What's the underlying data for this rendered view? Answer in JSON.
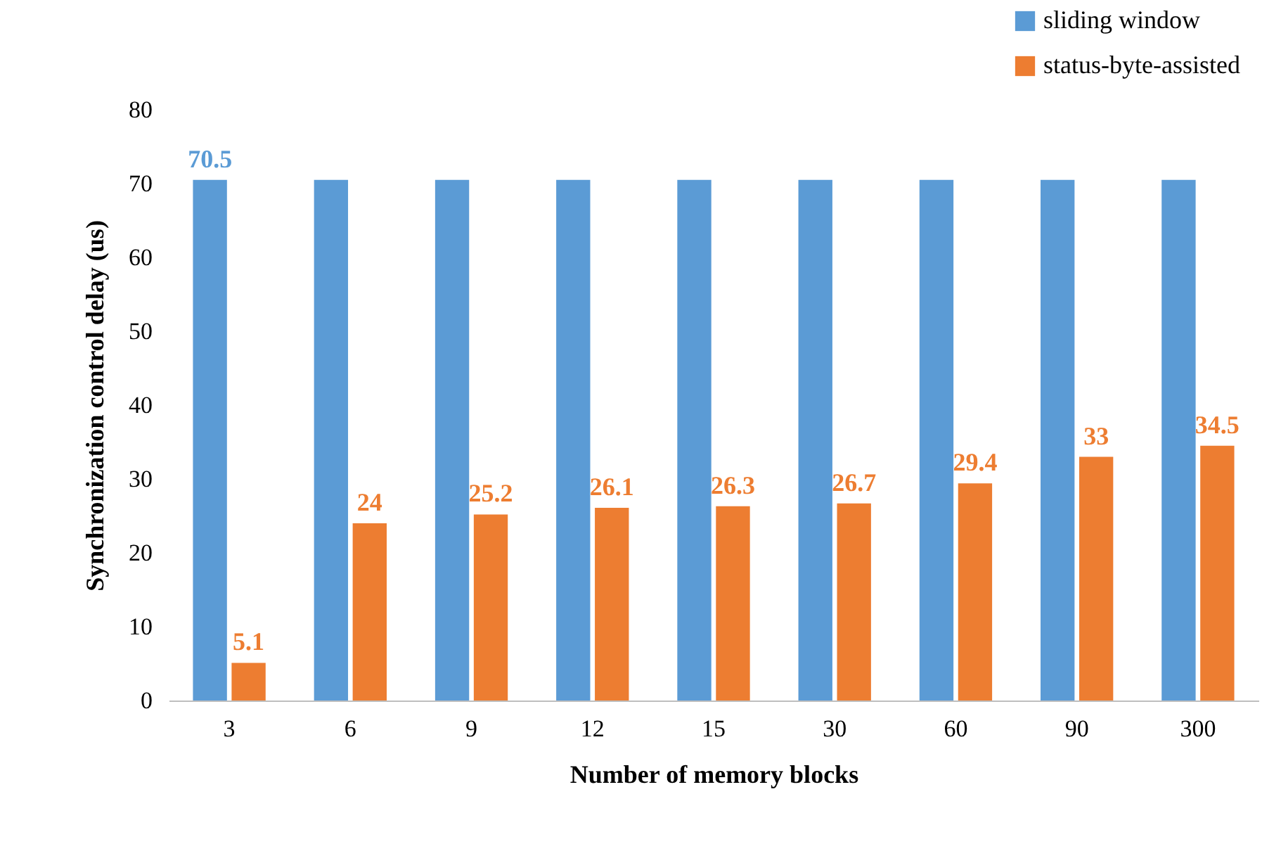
{
  "chart_data": {
    "type": "bar",
    "xlabel": "Number of memory blocks",
    "ylabel": "Synchronization control delay (us)",
    "categories": [
      "3",
      "6",
      "9",
      "12",
      "15",
      "30",
      "60",
      "90",
      "300"
    ],
    "series": [
      {
        "name": "sliding window",
        "color": "#5b9bd5",
        "values": [
          70.5,
          70.5,
          70.5,
          70.5,
          70.5,
          70.5,
          70.5,
          70.5,
          70.5
        ],
        "value_labels": [
          "70.5",
          null,
          null,
          null,
          null,
          null,
          null,
          null,
          null
        ]
      },
      {
        "name": "status-byte-assisted",
        "color": "#ed7d31",
        "values": [
          5.1,
          24,
          25.2,
          26.1,
          26.3,
          26.7,
          29.4,
          33,
          34.5
        ],
        "value_labels": [
          "5.1",
          "24",
          "25.2",
          "26.1",
          "26.3",
          "26.7",
          "29.4",
          "33",
          "34.5"
        ]
      }
    ],
    "ylim": [
      0,
      80
    ],
    "yticks": [
      0,
      10,
      20,
      30,
      40,
      50,
      60,
      70,
      80
    ],
    "grid": false,
    "legend": "top right"
  }
}
